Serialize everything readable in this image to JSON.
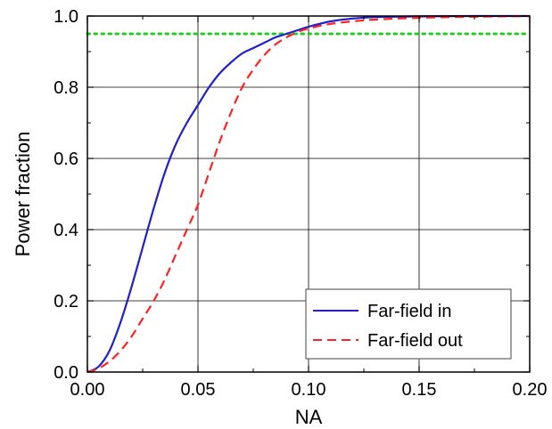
{
  "chart_data": {
    "type": "line",
    "xlabel": "NA",
    "ylabel": "Power fraction",
    "xlim": [
      0.0,
      0.2
    ],
    "ylim": [
      0.0,
      1.0
    ],
    "x_ticks": [
      "0.00",
      "0.05",
      "0.10",
      "0.15",
      "0.20"
    ],
    "y_ticks": [
      "0.0",
      "0.2",
      "0.4",
      "0.6",
      "0.8",
      "1.0"
    ],
    "grid": true,
    "legend_position": "bottom-right",
    "reference_line": {
      "y": 0.95,
      "color": "#22cc22",
      "style": "dotted"
    },
    "series": [
      {
        "name": "Far-field in",
        "color": "#1f1fcc",
        "style": "solid",
        "x": [
          0.0,
          0.005,
          0.01,
          0.015,
          0.02,
          0.025,
          0.03,
          0.035,
          0.04,
          0.045,
          0.05,
          0.055,
          0.06,
          0.065,
          0.07,
          0.075,
          0.08,
          0.085,
          0.09,
          0.095,
          0.1,
          0.11,
          0.12,
          0.13,
          0.15,
          0.175,
          0.2
        ],
        "y": [
          0.0,
          0.015,
          0.06,
          0.14,
          0.24,
          0.35,
          0.46,
          0.56,
          0.64,
          0.7,
          0.75,
          0.8,
          0.84,
          0.87,
          0.895,
          0.91,
          0.925,
          0.94,
          0.95,
          0.96,
          0.97,
          0.985,
          0.993,
          0.997,
          0.999,
          1.0,
          1.0
        ]
      },
      {
        "name": "Far-field out",
        "color": "#ff2222",
        "style": "dashed",
        "x": [
          0.0,
          0.005,
          0.01,
          0.015,
          0.02,
          0.025,
          0.03,
          0.035,
          0.04,
          0.045,
          0.05,
          0.055,
          0.06,
          0.065,
          0.07,
          0.075,
          0.08,
          0.085,
          0.09,
          0.095,
          0.1,
          0.11,
          0.12,
          0.13,
          0.15,
          0.175,
          0.2
        ],
        "y": [
          0.0,
          0.01,
          0.03,
          0.06,
          0.1,
          0.15,
          0.2,
          0.26,
          0.33,
          0.4,
          0.47,
          0.56,
          0.65,
          0.73,
          0.8,
          0.85,
          0.89,
          0.92,
          0.94,
          0.955,
          0.965,
          0.978,
          0.985,
          0.99,
          0.995,
          0.998,
          1.0
        ]
      }
    ]
  }
}
